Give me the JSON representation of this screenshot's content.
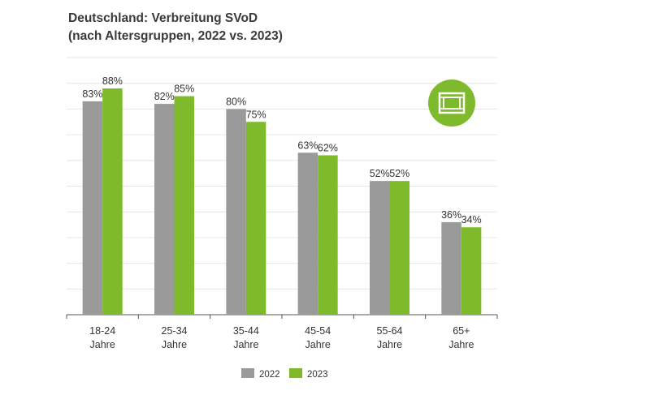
{
  "chart_data": {
    "type": "bar",
    "title": "Deutschland: Verbreitung SVoD",
    "subtitle": "(nach Altersgruppen, 2022 vs. 2023)",
    "categories": [
      [
        "18-24",
        "Jahre"
      ],
      [
        "25-34",
        "Jahre"
      ],
      [
        "35-44",
        "Jahre"
      ],
      [
        "45-54",
        "Jahre"
      ],
      [
        "55-64",
        "Jahre"
      ],
      [
        "65+",
        "Jahre"
      ]
    ],
    "series": [
      {
        "name": "2022",
        "color": "#9a9a9a",
        "values": [
          83,
          82,
          80,
          63,
          52,
          36
        ]
      },
      {
        "name": "2023",
        "color": "#7fba2c",
        "values": [
          88,
          85,
          75,
          62,
          52,
          34
        ]
      }
    ],
    "value_suffix": "%",
    "ylim": [
      0,
      100
    ],
    "grid": true,
    "legend_position": "bottom-center",
    "icon": "film-strip-icon",
    "icon_color": "#7fba2c"
  }
}
